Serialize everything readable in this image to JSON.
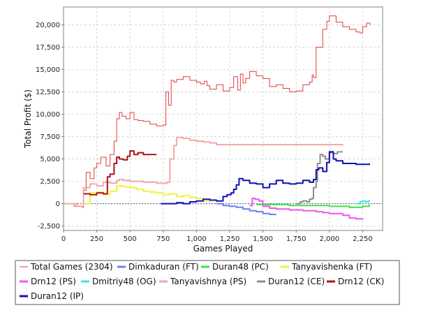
{
  "chart_data": {
    "type": "line",
    "title": "",
    "xlabel": "Games Played",
    "ylabel": "Total Profit ($)",
    "xlim": [
      0,
      2400
    ],
    "ylim": [
      -3000,
      22000
    ],
    "x_ticks": [
      0,
      250,
      500,
      750,
      1000,
      1250,
      1500,
      1750,
      2000,
      2250
    ],
    "x_tick_labels": [
      "0",
      "250",
      "500",
      "750",
      "1,000",
      "1,250",
      "1,500",
      "1,750",
      "2,000",
      "2,250"
    ],
    "y_ticks": [
      -2500,
      0,
      2500,
      5000,
      7500,
      10000,
      12500,
      15000,
      17500,
      20000
    ],
    "y_tick_labels": [
      "-2,500",
      "0",
      "2,500",
      "5,000",
      "7,500",
      "10,000",
      "12,500",
      "15,000",
      "17,500",
      "20,000"
    ],
    "grid": true,
    "legend_position": "bottom",
    "series": [
      {
        "name": "Total Games (2304)",
        "color": "#e03c3c",
        "width": 1,
        "x": [
          0,
          80,
          140,
          150,
          170,
          200,
          230,
          250,
          280,
          320,
          350,
          380,
          400,
          420,
          440,
          470,
          500,
          530,
          560,
          600,
          650,
          700,
          750,
          770,
          790,
          810,
          830,
          850,
          900,
          950,
          1000,
          1030,
          1060,
          1080,
          1100,
          1150,
          1200,
          1250,
          1280,
          1310,
          1330,
          1350,
          1370,
          1400,
          1450,
          1500,
          1550,
          1600,
          1650,
          1700,
          1750,
          1800,
          1850,
          1870,
          1880,
          1900,
          1950,
          1980,
          2000,
          2050,
          2100,
          2150,
          2200,
          2230,
          2250,
          2280,
          2304
        ],
        "y": [
          0,
          -300,
          -400,
          1500,
          3500,
          2800,
          4000,
          4500,
          5200,
          4200,
          5500,
          7000,
          9500,
          10200,
          9800,
          9500,
          10200,
          9400,
          9300,
          9200,
          8900,
          8700,
          8800,
          12500,
          11000,
          13800,
          13600,
          13900,
          14200,
          13800,
          13600,
          13400,
          13700,
          13200,
          12800,
          13300,
          12600,
          13000,
          14200,
          12700,
          14500,
          13500,
          14000,
          14800,
          14300,
          14000,
          13100,
          13300,
          12900,
          12500,
          12600,
          13300,
          13600,
          14400,
          14100,
          17500,
          19500,
          20400,
          21000,
          20300,
          19800,
          19500,
          19200,
          19100,
          19800,
          20200,
          20000
        ]
      },
      {
        "name": "Dimkaduran (FT)",
        "color": "#6b7ff0",
        "width": 2,
        "x": [
          1150,
          1200,
          1250,
          1300,
          1350,
          1400,
          1450,
          1500,
          1550,
          1600
        ],
        "y": [
          0,
          -200,
          -300,
          -400,
          -600,
          -800,
          -900,
          -1100,
          -1200,
          -1200
        ]
      },
      {
        "name": "Duran48 (PC)",
        "color": "#44e044",
        "width": 2,
        "x": [
          1450,
          1500,
          1600,
          1700,
          1800,
          1900,
          2000,
          2050,
          2100,
          2150,
          2200,
          2250,
          2300
        ],
        "y": [
          -100,
          -100,
          -100,
          -200,
          -200,
          -200,
          -300,
          -300,
          -300,
          -400,
          -400,
          -300,
          -100
        ]
      },
      {
        "name": "Tanyavishenka (FT)",
        "color": "#f2f23c",
        "width": 2,
        "x": [
          150,
          200,
          250,
          300,
          350,
          400,
          450,
          500,
          550,
          600,
          650,
          700,
          750,
          800,
          850,
          900,
          950,
          1000,
          1050,
          1100
        ],
        "y": [
          0,
          1200,
          1300,
          1000,
          1400,
          2000,
          1900,
          1800,
          1600,
          1400,
          1300,
          1200,
          1000,
          1100,
          800,
          900,
          700,
          600,
          300,
          200
        ]
      },
      {
        "name": "Drn12 (PS)",
        "color": "#ee55ee",
        "width": 2,
        "x": [
          1400,
          1420,
          1440,
          1470,
          1500,
          1550,
          1600,
          1700,
          1800,
          1900,
          1950,
          2000,
          2100,
          2150,
          2200,
          2250
        ],
        "y": [
          -200,
          600,
          500,
          300,
          -300,
          -500,
          -600,
          -700,
          -800,
          -900,
          -1000,
          -1100,
          -1300,
          -1600,
          -1700,
          -1800
        ]
      },
      {
        "name": "Dmitriy48 (OG)",
        "color": "#33e8e8",
        "width": 2,
        "x": [
          2200,
          2230,
          2250,
          2270,
          2290,
          2300
        ],
        "y": [
          0,
          200,
          300,
          200,
          300,
          200
        ]
      },
      {
        "name": "Tanyavishnya (PS)",
        "color": "#f2a8a8",
        "width": 2,
        "x": [
          0,
          100,
          150,
          200,
          250,
          300,
          350,
          400,
          420,
          450,
          500,
          600,
          700,
          750,
          780,
          800,
          830,
          850,
          900,
          950,
          1000,
          1050,
          1100,
          1150,
          1200,
          1300,
          1400,
          1500,
          1600,
          1700,
          1800,
          1900,
          2000,
          2100
        ],
        "y": [
          0,
          -300,
          1800,
          2200,
          2000,
          2400,
          2300,
          2600,
          2700,
          2600,
          2500,
          2400,
          2300,
          2300,
          2400,
          5000,
          6500,
          7400,
          7300,
          7100,
          7000,
          6900,
          6800,
          6600,
          6600,
          6600,
          6600,
          6600,
          6600,
          6600,
          6600,
          6600,
          6600,
          6500
        ]
      },
      {
        "name": "Duran12 (CE)",
        "color": "#8c8c8c",
        "width": 2,
        "x": [
          1750,
          1780,
          1800,
          1830,
          1850,
          1870,
          1880,
          1900,
          1910,
          1930,
          1950,
          1970,
          2000,
          2030,
          2060,
          2100
        ],
        "y": [
          0,
          200,
          300,
          200,
          500,
          600,
          1800,
          2500,
          4500,
          5500,
          5300,
          5000,
          5700,
          5600,
          5800,
          5800
        ]
      },
      {
        "name": "Drn12 (CK)",
        "color": "#b01010",
        "width": 2,
        "x": [
          150,
          200,
          250,
          300,
          330,
          350,
          380,
          400,
          420,
          450,
          480,
          500,
          530,
          560,
          600,
          650,
          700
        ],
        "y": [
          1100,
          1000,
          1200,
          1100,
          3000,
          3300,
          4500,
          5200,
          5000,
          4900,
          5300,
          5900,
          5500,
          5700,
          5500,
          5500,
          5500
        ]
      },
      {
        "name": "Duran12 (IP)",
        "color": "#1010b0",
        "width": 2,
        "x": [
          730,
          800,
          850,
          900,
          950,
          1000,
          1050,
          1100,
          1150,
          1200,
          1230,
          1260,
          1280,
          1300,
          1320,
          1350,
          1400,
          1450,
          1500,
          1550,
          1600,
          1650,
          1700,
          1750,
          1800,
          1850,
          1880,
          1900,
          1920,
          1950,
          1980,
          2000,
          2030,
          2050,
          2100,
          2150,
          2200,
          2250,
          2300
        ],
        "y": [
          0,
          0,
          100,
          0,
          200,
          300,
          500,
          400,
          300,
          800,
          1000,
          1200,
          1600,
          2100,
          2800,
          2600,
          2300,
          2200,
          1800,
          2200,
          2600,
          2300,
          2200,
          2300,
          2600,
          2400,
          2700,
          3800,
          4000,
          3600,
          4600,
          5800,
          5000,
          4800,
          4500,
          4500,
          4400,
          4400,
          4500
        ]
      }
    ]
  }
}
